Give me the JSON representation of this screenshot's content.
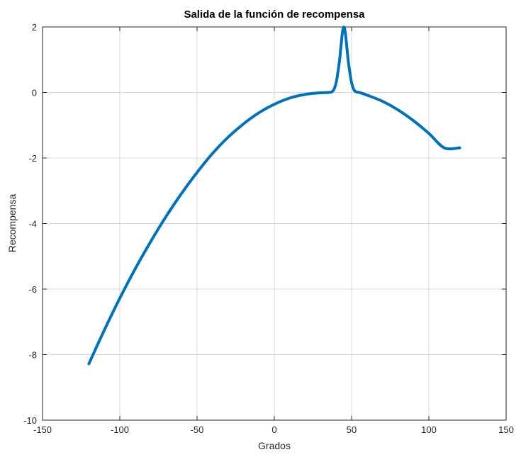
{
  "chart_data": {
    "type": "line",
    "title": "Salida de la función de recompensa",
    "xlabel": "Grados",
    "ylabel": "Recompensa",
    "xlim": [
      -150,
      150
    ],
    "ylim": [
      -10,
      2
    ],
    "xticks": [
      -150,
      -100,
      -50,
      0,
      50,
      100,
      150
    ],
    "yticks": [
      -10,
      -8,
      -6,
      -4,
      -2,
      0,
      2
    ],
    "xtick_labels": [
      "-150",
      "-100",
      "-50",
      "0",
      "50",
      "100",
      "150"
    ],
    "ytick_labels": [
      "-10",
      "-8",
      "-6",
      "-4",
      "-2",
      "0",
      "2"
    ],
    "grid": true,
    "series": [
      {
        "color": "#0072BD",
        "x": [
          -120,
          -110,
          -100,
          -90,
          -80,
          -70,
          -60,
          -50,
          -40,
          -30,
          -20,
          -10,
          0,
          10,
          20,
          30,
          35,
          38,
          40,
          42,
          43,
          44,
          45,
          46,
          47,
          48,
          50,
          52,
          55,
          60,
          70,
          80,
          90,
          100,
          110,
          120
        ],
        "y": [
          -8.28,
          -7.25,
          -6.28,
          -5.38,
          -4.55,
          -3.78,
          -3.08,
          -2.44,
          -1.86,
          -1.37,
          -0.96,
          -0.62,
          -0.36,
          -0.17,
          -0.06,
          -0.01,
          0.0,
          0.05,
          0.3,
          0.9,
          1.35,
          1.8,
          2.0,
          1.8,
          1.35,
          0.9,
          0.3,
          0.05,
          0.0,
          -0.08,
          -0.27,
          -0.53,
          -0.86,
          -1.25,
          -1.69,
          -1.69
        ]
      }
    ]
  }
}
